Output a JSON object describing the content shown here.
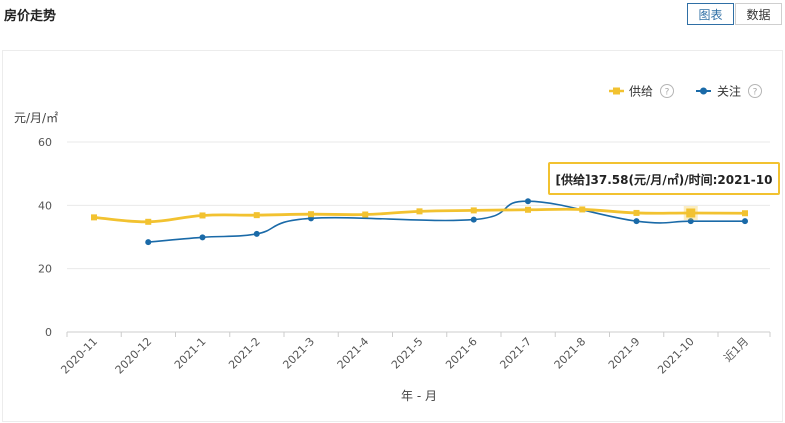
{
  "page": {
    "title": "房价走势",
    "view_toggle": {
      "chart_label": "图表",
      "data_label": "数据",
      "active": "chart"
    }
  },
  "legend": {
    "supply_label": "供给",
    "attention_label": "关注",
    "help_glyph": "?"
  },
  "tooltip": {
    "text": "[供给]37.58(元/月/㎡)/时间:2021-10"
  },
  "colors": {
    "supply": "#f2c230",
    "attention": "#1a6aa8",
    "grid": "#eaeaea",
    "axis": "#cccccc"
  },
  "chart_data": {
    "type": "line",
    "title": "房价走势",
    "xlabel": "年 - 月",
    "ylabel": "元/月/㎡",
    "ylim": [
      0,
      60
    ],
    "yticks": [
      0,
      20,
      40,
      60
    ],
    "grid": true,
    "legend_position": "top-right",
    "categories": [
      "2020-11",
      "2020-12",
      "2021-1",
      "2021-2",
      "2021-3",
      "2021-4",
      "2021-5",
      "2021-6",
      "2021-7",
      "2021-8",
      "2021-9",
      "2021-10",
      "近1月"
    ],
    "series": [
      {
        "name": "供给",
        "key": "supply",
        "marker": "square",
        "values": [
          36.2,
          34.8,
          36.8,
          36.9,
          37.2,
          37.1,
          38.1,
          38.4,
          38.6,
          38.7,
          37.6,
          37.58,
          37.5
        ]
      },
      {
        "name": "关注",
        "key": "attention",
        "marker": "circle",
        "values": [
          null,
          28.4,
          29.9,
          31.0,
          35.9,
          null,
          null,
          35.5,
          41.3,
          null,
          35.0,
          35.0,
          35.0
        ]
      }
    ],
    "highlight": {
      "series": "供给",
      "category": "2021-10"
    }
  }
}
